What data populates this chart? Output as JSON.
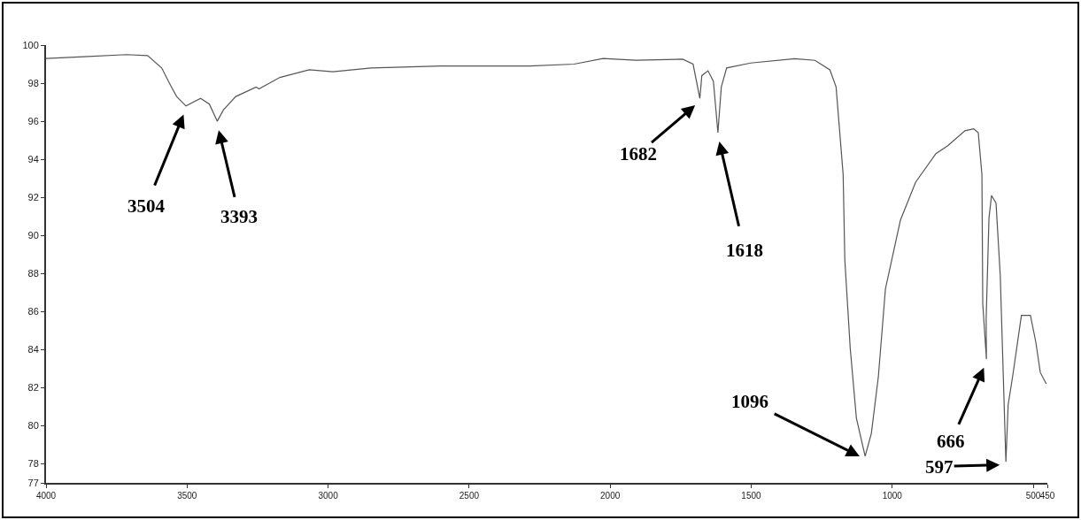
{
  "chart_data": {
    "type": "line",
    "x": [
      4000,
      3850,
      3715,
      3640,
      3590,
      3559,
      3537,
      3504,
      3452,
      3421,
      3393,
      3371,
      3327,
      3255,
      3245,
      3171,
      3067,
      2983,
      2848,
      2600,
      2285,
      2128,
      2025,
      1909,
      1743,
      1706,
      1682,
      1675,
      1653,
      1634,
      1618,
      1606,
      1587,
      1502,
      1346,
      1274,
      1221,
      1199,
      1174,
      1168,
      1149,
      1127,
      1096,
      1074,
      1049,
      1024,
      996,
      971,
      917,
      845,
      804,
      742,
      711,
      695,
      682,
      679,
      666,
      667,
      657,
      648,
      632,
      617,
      597,
      589,
      573,
      542,
      510,
      491,
      475,
      454
    ],
    "series": [
      {
        "color": "#555555",
        "values": [
          99.3,
          99.4,
          99.5,
          99.45,
          98.8,
          97.9,
          97.3,
          96.8,
          97.2,
          96.9,
          96.0,
          96.6,
          97.3,
          97.8,
          97.7,
          98.3,
          98.7,
          98.6,
          98.8,
          98.9,
          98.9,
          99.0,
          99.3,
          99.2,
          99.26,
          99.0,
          97.2,
          98.4,
          98.65,
          98.1,
          95.4,
          97.8,
          98.8,
          99.06,
          99.29,
          99.2,
          98.7,
          97.8,
          93.2,
          88.7,
          84.1,
          80.4,
          78.4,
          79.6,
          82.6,
          87.2,
          89.1,
          90.8,
          92.8,
          94.3,
          94.7,
          95.5,
          95.6,
          95.4,
          93.2,
          86.4,
          83.5,
          85.6,
          90.9,
          92.1,
          91.7,
          87.9,
          78.1,
          81.1,
          82.6,
          85.8,
          85.8,
          84.4,
          82.8,
          82.2
        ]
      }
    ],
    "xlim": [
      4000,
      450
    ],
    "xticks": [
      4000,
      3500,
      3000,
      2500,
      2000,
      1500,
      1000,
      500,
      450
    ],
    "ylim": [
      77,
      100
    ],
    "yticks": [
      77,
      78,
      80,
      82,
      84,
      86,
      88,
      90,
      92,
      94,
      96,
      98,
      100
    ],
    "grid": false,
    "marker": "none",
    "line_style": "solid",
    "annotations": [
      {
        "text": "3504",
        "x": 3504,
        "y": 96.8
      },
      {
        "text": "3393",
        "x": 3393,
        "y": 96.0
      },
      {
        "text": "1682",
        "x": 1682,
        "y": 97.2
      },
      {
        "text": "1618",
        "x": 1618,
        "y": 95.4
      },
      {
        "text": "1096",
        "x": 1096,
        "y": 78.4
      },
      {
        "text": "666",
        "x": 666,
        "y": 83.5
      },
      {
        "text": "597",
        "x": 597,
        "y": 78.1
      }
    ]
  }
}
